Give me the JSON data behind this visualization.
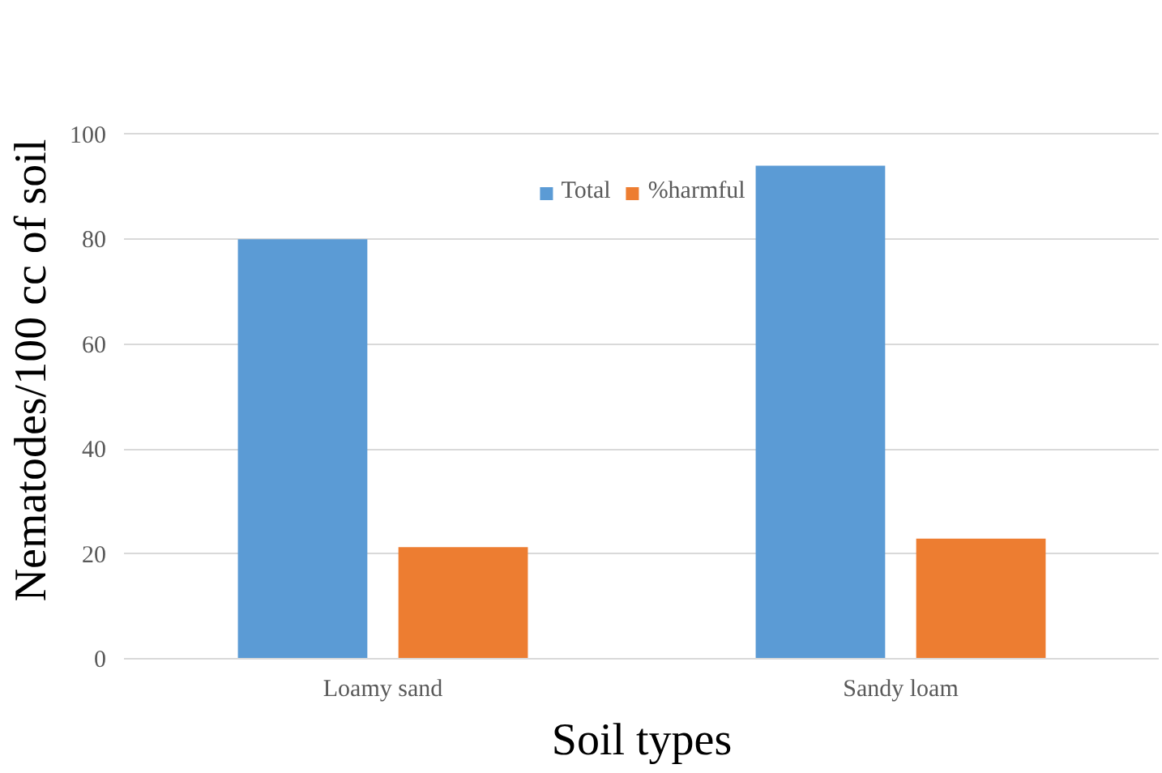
{
  "chart_data": {
    "type": "bar",
    "xlabel": "Soil types",
    "ylabel": "Nematodes/100 cc of soil",
    "categories": [
      "Loamy sand",
      "Sandy loam"
    ],
    "series": [
      {
        "name": "Total",
        "color": "#5b9bd5",
        "values": [
          80,
          94
        ]
      },
      {
        "name": "%harmful",
        "color": "#ed7d31",
        "values": [
          21.3,
          22.9
        ]
      }
    ],
    "ylim": [
      0,
      100
    ],
    "yticks": [
      0,
      20,
      40,
      60,
      80,
      100
    ],
    "grid": "y",
    "legend": "top"
  }
}
